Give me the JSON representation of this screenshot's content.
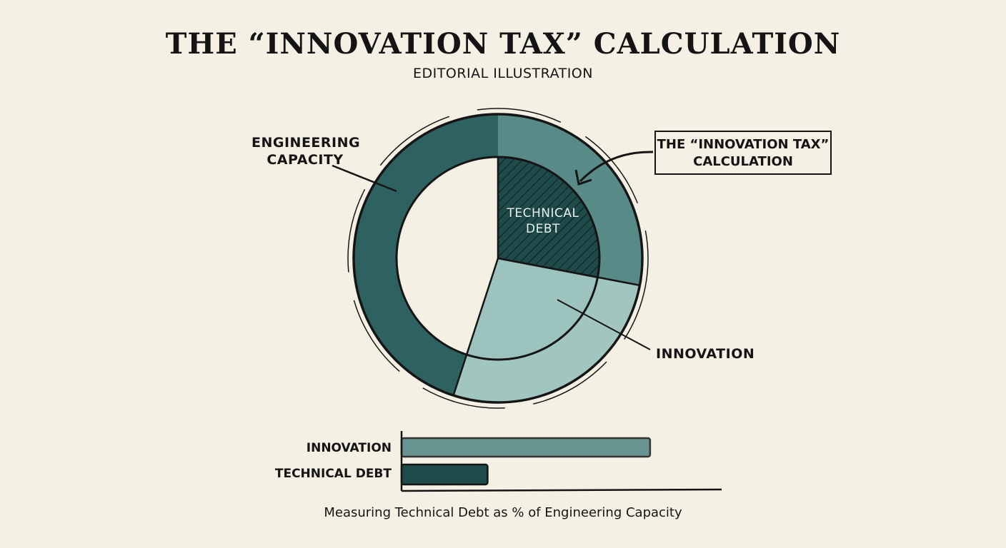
{
  "header": {
    "title": "THE “INNOVATION TAX” CALCULATION",
    "subtitle": "EDITORIAL ILLUSTRATION"
  },
  "labels": {
    "capacity_line1": "ENGINEERING",
    "capacity_line2": "CAPACITY",
    "callout_line1": "THE “INNOVATION TAX”",
    "callout_line2": "CALCULATION",
    "innovation": "INNOVATION",
    "debt_line1": "TECHNICAL",
    "debt_line2": "DEBT"
  },
  "caption": "Measuring Technical Debt as % of Engineering Capacity",
  "colors": {
    "dark_teal": "#235a5a",
    "mid_teal": "#4f8583",
    "light_teal": "#9cc3bd",
    "debt_fill": "#1f4a4a",
    "background": "#f4f0e4"
  },
  "chart_data": [
    {
      "type": "pie",
      "title": "",
      "slices": [
        {
          "name": "TECHNICAL DEBT",
          "share": 0.28
        },
        {
          "name": "INNOVATION",
          "share": 0.27
        }
      ],
      "ring_label": "ENGINEERING CAPACITY"
    },
    {
      "type": "bar",
      "orientation": "horizontal",
      "categories": [
        "INNOVATION",
        "TECHNICAL DEBT"
      ],
      "values": [
        78,
        27
      ],
      "xlabel": "",
      "ylabel": ""
    }
  ]
}
